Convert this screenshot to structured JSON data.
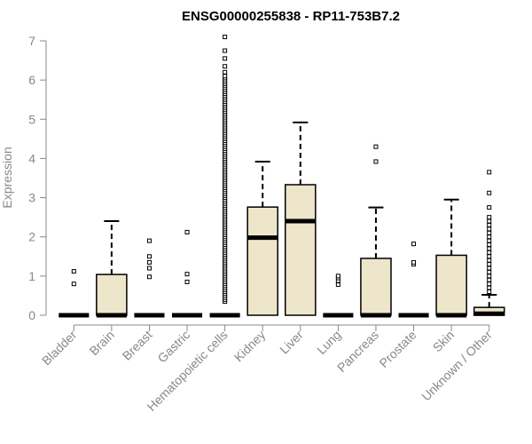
{
  "chart_data": {
    "type": "boxplot",
    "title": "ENSG00000255838 - RP11-753B7.2",
    "ylabel": "Expression",
    "xlabel": "",
    "ylim": [
      0,
      7
    ],
    "yticks": [
      0,
      1,
      2,
      3,
      4,
      5,
      6,
      7
    ],
    "box_fill": "#ede6cb",
    "categories": [
      "Bladder",
      "Brain",
      "Breast",
      "Gastric",
      "Hematopoietic cells",
      "Kidney",
      "Liver",
      "Lung",
      "Pancreas",
      "Prostate",
      "Skin",
      "Unknown / Other"
    ],
    "boxes": [
      {
        "q1": 0,
        "median": 0,
        "q3": 0,
        "whisker_low": 0,
        "whisker_high": 0,
        "outliers": [
          0.8,
          1.12
        ]
      },
      {
        "q1": 0,
        "median": 0,
        "q3": 1.04,
        "whisker_low": 0,
        "whisker_high": 2.4,
        "outliers": []
      },
      {
        "q1": 0,
        "median": 0,
        "q3": 0,
        "whisker_low": 0,
        "whisker_high": 0,
        "outliers": [
          0.98,
          1.2,
          1.35,
          1.5,
          1.9
        ]
      },
      {
        "q1": 0,
        "median": 0,
        "q3": 0,
        "whisker_low": 0,
        "whisker_high": 0,
        "outliers": [
          0.85,
          1.05,
          2.12
        ]
      },
      {
        "q1": 0,
        "median": 0,
        "q3": 0,
        "whisker_low": 0,
        "whisker_high": 0,
        "outliers": [
          0.35,
          0.4,
          0.45,
          0.5,
          0.55,
          0.6,
          0.65,
          0.7,
          0.75,
          0.8,
          0.85,
          0.9,
          0.95,
          1.0,
          1.05,
          1.1,
          1.15,
          1.2,
          1.25,
          1.3,
          1.35,
          1.4,
          1.45,
          1.5,
          1.55,
          1.6,
          1.65,
          1.7,
          1.75,
          1.8,
          1.85,
          1.9,
          1.95,
          2.0,
          2.05,
          2.1,
          2.15,
          2.2,
          2.25,
          2.3,
          2.35,
          2.4,
          2.45,
          2.5,
          2.55,
          2.6,
          2.65,
          2.7,
          2.75,
          2.8,
          2.85,
          2.9,
          2.95,
          3.0,
          3.05,
          3.1,
          3.15,
          3.2,
          3.25,
          3.3,
          3.35,
          3.4,
          3.45,
          3.5,
          3.55,
          3.6,
          3.65,
          3.7,
          3.75,
          3.8,
          3.85,
          3.9,
          3.95,
          4.0,
          4.05,
          4.1,
          4.15,
          4.2,
          4.25,
          4.3,
          4.35,
          4.4,
          4.45,
          4.5,
          4.55,
          4.6,
          4.65,
          4.7,
          4.75,
          4.8,
          4.85,
          4.9,
          4.95,
          5.0,
          5.05,
          5.1,
          5.15,
          5.2,
          5.25,
          5.3,
          5.35,
          5.4,
          5.45,
          5.5,
          5.55,
          5.6,
          5.65,
          5.7,
          5.75,
          5.8,
          5.85,
          5.9,
          5.95,
          6.0,
          6.05,
          6.1,
          6.2,
          6.35,
          6.55,
          6.75,
          7.1
        ]
      },
      {
        "q1": 0,
        "median": 1.98,
        "q3": 2.76,
        "whisker_low": 0,
        "whisker_high": 3.92,
        "outliers": []
      },
      {
        "q1": 0,
        "median": 2.4,
        "q3": 3.33,
        "whisker_low": 0,
        "whisker_high": 4.92,
        "outliers": []
      },
      {
        "q1": 0,
        "median": 0,
        "q3": 0,
        "whisker_low": 0,
        "whisker_high": 0,
        "outliers": [
          0.78,
          0.88,
          0.95,
          1.0
        ]
      },
      {
        "q1": 0,
        "median": 0,
        "q3": 1.45,
        "whisker_low": 0,
        "whisker_high": 2.75,
        "outliers": [
          3.92,
          4.3
        ]
      },
      {
        "q1": 0,
        "median": 0,
        "q3": 0,
        "whisker_low": 0,
        "whisker_high": 0,
        "outliers": [
          1.3,
          1.35,
          1.82
        ]
      },
      {
        "q1": 0,
        "median": 0,
        "q3": 1.53,
        "whisker_low": 0,
        "whisker_high": 2.95,
        "outliers": []
      },
      {
        "q1": 0,
        "median": 0.04,
        "q3": 0.2,
        "whisker_low": 0,
        "whisker_high": 0.52,
        "outliers": [
          0.6,
          0.7,
          0.8,
          0.9,
          1.0,
          1.1,
          1.2,
          1.3,
          1.4,
          1.5,
          1.6,
          1.7,
          1.8,
          1.9,
          2.0,
          2.1,
          2.2,
          2.3,
          2.4,
          2.5,
          2.75,
          3.12,
          3.65
        ]
      }
    ]
  }
}
